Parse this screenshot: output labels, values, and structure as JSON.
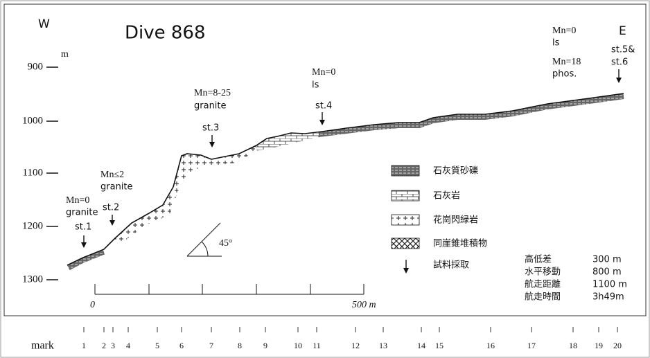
{
  "header": {
    "left": "W",
    "right": "E",
    "title": "Dive 868"
  },
  "depth_axis": {
    "unit": "m",
    "labels": [
      "900",
      "1000",
      "1100",
      "1200",
      "1300"
    ]
  },
  "stations": [
    {
      "lines": [
        "Mn=0",
        "granite"
      ],
      "label": [
        "st.1"
      ]
    },
    {
      "lines": [
        "Mn≤2",
        "granite"
      ],
      "label": [
        "st.2"
      ]
    },
    {
      "lines": [
        "Mn=8-25",
        "granite"
      ],
      "label": [
        "st.3"
      ]
    },
    {
      "lines": [
        "Mn=0",
        "ls"
      ],
      "label": [
        "st.4"
      ]
    },
    {
      "lines": [
        "Mn=0",
        "ls",
        "Mn=18",
        "phos."
      ],
      "label": [
        "st.5&",
        "st.6"
      ]
    }
  ],
  "legend": [
    "石灰質砂礫",
    "石灰岩",
    "花崗閃緑岩",
    "同崖錐堆積物",
    "試料採取"
  ],
  "stats": [
    [
      "高低差",
      "300 m"
    ],
    [
      "水平移動",
      "800 m"
    ],
    [
      "航走距離",
      "1100 m"
    ],
    [
      "航走時間",
      "3h49m"
    ]
  ],
  "scale": {
    "start": "0",
    "end": "500 m"
  },
  "angle": "45°",
  "marks": {
    "title": "mark",
    "numbers": [
      "1",
      "2",
      "3",
      "4",
      "5",
      "6",
      "7",
      "8",
      "9",
      "10",
      "11",
      "12",
      "13",
      "14",
      "15",
      "16",
      "17",
      "18",
      "19",
      "20"
    ]
  }
}
